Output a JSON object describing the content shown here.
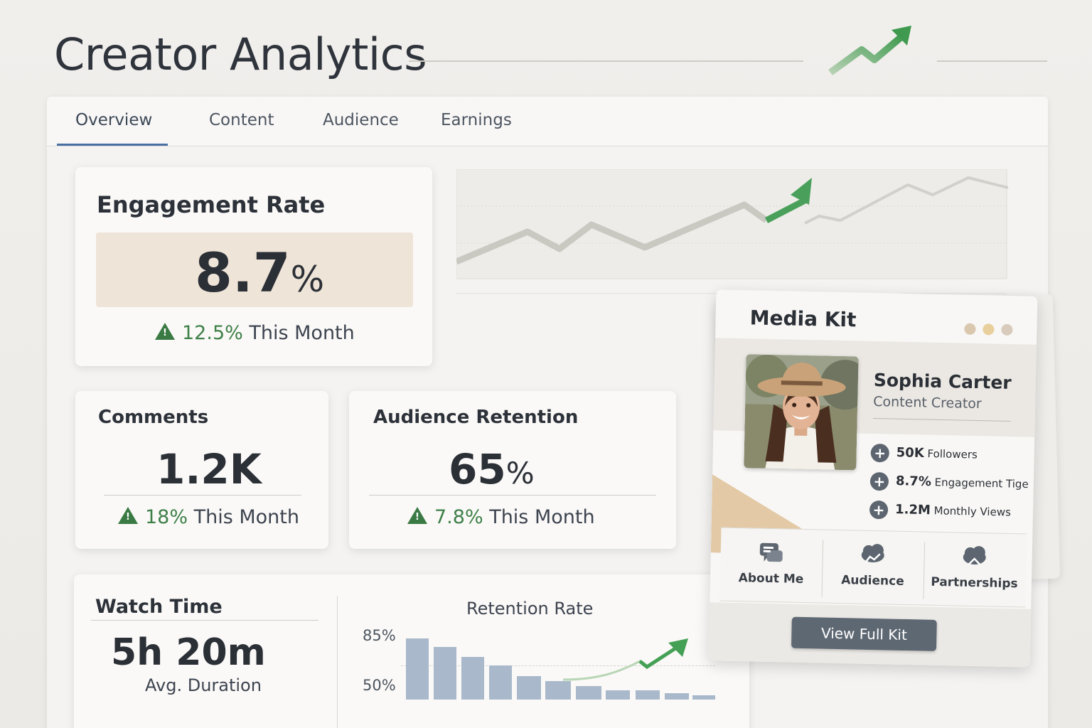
{
  "header": {
    "title": "Creator Analytics"
  },
  "tabs": [
    {
      "label": "Overview",
      "active": true
    },
    {
      "label": "Content",
      "active": false
    },
    {
      "label": "Audience",
      "active": false
    },
    {
      "label": "Earnings",
      "active": false
    }
  ],
  "engagement": {
    "title": "Engagement Rate",
    "value": "8.7",
    "unit": "%",
    "trend_value": "12.5%",
    "trend_label": "This Month"
  },
  "comments": {
    "title": "Comments",
    "value": "1.2K",
    "trend_value": "18%",
    "trend_label": "This Month"
  },
  "retention": {
    "title": "Audience Retention",
    "value": "65",
    "unit": "%",
    "trend_value": "7.8%",
    "trend_label": "This Month"
  },
  "watch_time": {
    "title": "Watch Time",
    "value": "5h 20m",
    "caption": "Avg. Duration"
  },
  "retention_chart": {
    "title": "Retention Rate",
    "tick_top": "85%",
    "tick_bottom": "50%"
  },
  "media_kit": {
    "title": "Media Kit",
    "name": "Sophia Carter",
    "role": "Content Creator",
    "stats": [
      {
        "value": "50K",
        "label": "Followers"
      },
      {
        "value": "8.7%",
        "label": "Engagement Tige"
      },
      {
        "value": "1.2M",
        "label": "Monthly Views"
      }
    ],
    "nav": [
      {
        "label": "About Me",
        "icon": "chat-bubbles-icon"
      },
      {
        "label": "Audience",
        "icon": "cloud-chart-icon"
      },
      {
        "label": "Partnerships",
        "icon": "cloud-handshake-icon"
      }
    ],
    "button_label": "View Full Kit",
    "dot_colors": [
      "#d9c8ae",
      "#e8cf9c",
      "#d8cbbb"
    ]
  },
  "colors": {
    "accent": "#4a6fa5",
    "positive": "#3f8049",
    "bar": "#a9b9cb",
    "button": "#5e6873"
  }
}
